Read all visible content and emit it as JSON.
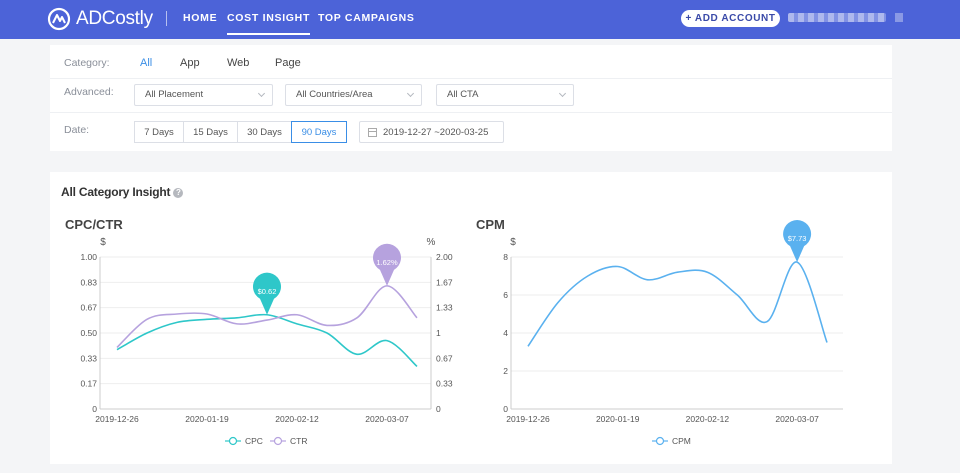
{
  "header": {
    "brand": "ADCostly",
    "nav": [
      "HOME",
      "COST INSIGHT",
      "TOP CAMPAIGNS"
    ],
    "active_nav": "COST INSIGHT",
    "add_account": "+ ADD ACCOUNT"
  },
  "filters": {
    "category_label": "Category:",
    "categories": [
      "All",
      "App",
      "Web",
      "Page"
    ],
    "active_category": "All",
    "advanced_label": "Advanced:",
    "placement": "All Placement",
    "countries": "All Countries/Area",
    "cta": "All CTA",
    "date_label": "Date:",
    "day_options": [
      "7 Days",
      "15 Days",
      "30 Days",
      "90 Days"
    ],
    "active_day": "90 Days",
    "date_range": "2019-12-27  ~2020-03-25"
  },
  "insight": {
    "title": "All Category Insight",
    "help": "?"
  },
  "colors": {
    "brand": "#4c63d8",
    "accent": "#3a8ee6",
    "cpc": "#2ec7c9",
    "ctr": "#b6a2de",
    "cpm": "#5ab1ef"
  },
  "chart_data": [
    {
      "type": "line",
      "title": "CPC/CTR",
      "y_left_unit": "$",
      "y_right_unit": "%",
      "x_ticks": [
        "2019-12-26",
        "2020-01-19",
        "2020-02-12",
        "2020-03-07"
      ],
      "y_left_ticks": [
        "1.00",
        "0.83",
        "0.67",
        "0.50",
        "0.33",
        "0.17",
        "0"
      ],
      "y_right_ticks": [
        "2.00",
        "1.67",
        "1.33",
        "1",
        "0.67",
        "0.33",
        "0"
      ],
      "ylim_left": [
        0,
        1
      ],
      "ylim_right": [
        0,
        2
      ],
      "grid": true,
      "legend_position": "bottom-center",
      "series": [
        {
          "name": "CPC",
          "axis": "left",
          "x": [
            "2019-12-26",
            "2020-01-03",
            "2020-01-11",
            "2020-01-19",
            "2020-01-27",
            "2020-02-04",
            "2020-02-12",
            "2020-02-20",
            "2020-02-28",
            "2020-03-07",
            "2020-03-15"
          ],
          "y": [
            0.39,
            0.5,
            0.57,
            0.59,
            0.6,
            0.62,
            0.56,
            0.5,
            0.36,
            0.45,
            0.28
          ],
          "highlight": {
            "x": "2020-02-04",
            "label": "$0.62"
          }
        },
        {
          "name": "CTR",
          "axis": "right",
          "x": [
            "2019-12-26",
            "2020-01-03",
            "2020-01-11",
            "2020-01-19",
            "2020-01-27",
            "2020-02-04",
            "2020-02-12",
            "2020-02-20",
            "2020-02-28",
            "2020-03-07",
            "2020-03-15"
          ],
          "y": [
            0.81,
            1.18,
            1.25,
            1.25,
            1.12,
            1.17,
            1.24,
            1.1,
            1.2,
            1.62,
            1.2
          ],
          "highlight": {
            "x": "2020-03-07",
            "label": "1.62%"
          }
        }
      ]
    },
    {
      "type": "line",
      "title": "CPM",
      "y_left_unit": "$",
      "x_ticks": [
        "2019-12-26",
        "2020-01-19",
        "2020-02-12",
        "2020-03-07"
      ],
      "y_left_ticks": [
        "8",
        "6",
        "4",
        "2",
        "0"
      ],
      "ylim_left": [
        0,
        8
      ],
      "grid": true,
      "legend_position": "bottom-center",
      "series": [
        {
          "name": "CPM",
          "axis": "left",
          "x": [
            "2019-12-26",
            "2020-01-03",
            "2020-01-11",
            "2020-01-19",
            "2020-01-27",
            "2020-02-04",
            "2020-02-12",
            "2020-02-20",
            "2020-02-28",
            "2020-03-07",
            "2020-03-15"
          ],
          "y": [
            3.3,
            5.6,
            7.0,
            7.5,
            6.8,
            7.2,
            7.2,
            6.0,
            4.6,
            7.73,
            3.5
          ],
          "highlight": {
            "x": "2020-03-07",
            "label": "$7.73"
          }
        }
      ]
    }
  ]
}
